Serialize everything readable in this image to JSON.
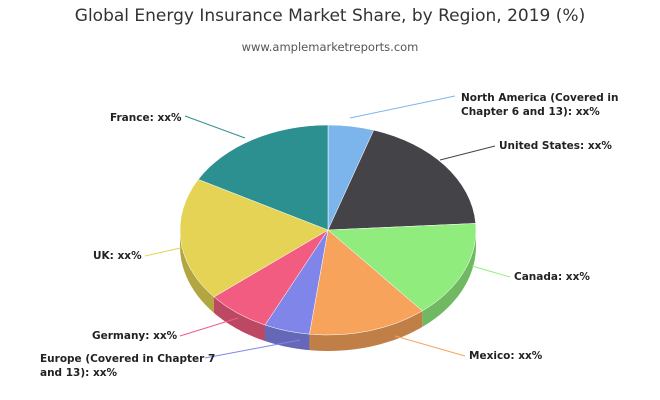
{
  "chart_data": {
    "type": "pie",
    "title": "Global Energy Insurance Market Share, by Region, 2019 (%)",
    "subtitle": "www.amplemarketreports.com",
    "categories": [
      "North America (Covered in Chapter 6 and 13): xx%",
      "United States: xx%",
      "Canada: xx%",
      "Mexico: xx%",
      "Europe (Covered in Chapter 7 and 13): xx%",
      "Germany: xx%",
      "UK: xx%",
      "France: xx%"
    ],
    "values": [
      5,
      19,
      15,
      13,
      5,
      7,
      19,
      17
    ],
    "colors": [
      "#7cb5ec",
      "#434348",
      "#90ed7d",
      "#f7a35c",
      "#8085e9",
      "#f15c80",
      "#e4d354",
      "#2b908f"
    ]
  }
}
